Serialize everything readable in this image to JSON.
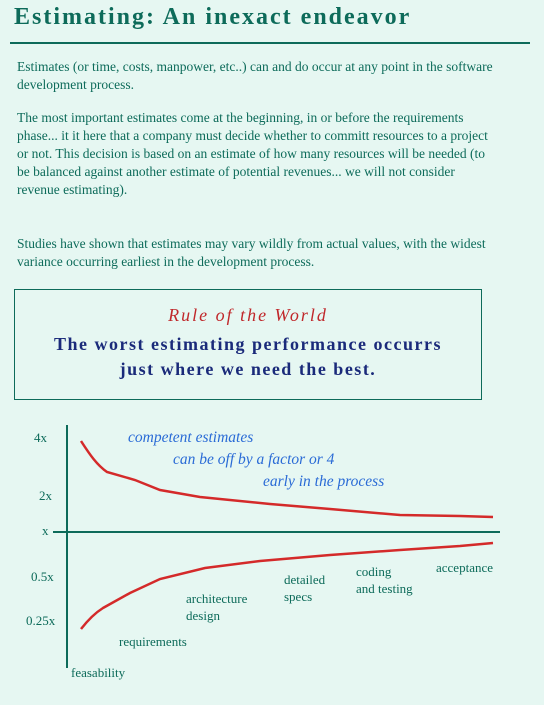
{
  "title": "Estimating: An inexact endeavor",
  "paragraphs": {
    "p1": "Estimates (or time, costs, manpower, etc..) can and do occur at any point in the software development process.",
    "p2": "The most important estimates come at the beginning, in or before the requirements phase... it it here that a company must decide whether to committ resources to a project or not.  This decision is based on an estimate of how many resources will be needed (to be balanced against another estimate of potential revenues... we will not consider revenue estimating).",
    "p3": "Studies have shown that estimates may vary wildly from actual values, with the widest variance occurring earliest in the development process."
  },
  "rule_box": {
    "heading": "Rule of the World",
    "line1": "The worst estimating performance occurrs",
    "line2": "just where we need the best."
  },
  "diagram": {
    "y_labels": [
      "4x",
      "2x",
      "x",
      "0.5x",
      "0.25x"
    ],
    "annotation": [
      "competent estimates",
      "can be off by a factor or 4",
      "early in the process"
    ],
    "phases": {
      "feasability": "feasability",
      "requirements": "requirements",
      "architecture": [
        "architecture",
        "design"
      ],
      "detailed": [
        "detailed",
        "specs"
      ],
      "coding": [
        "coding",
        "and testing"
      ],
      "acceptance": "acceptance"
    },
    "colors": {
      "curve": "#d42a2a",
      "axis": "#0d6b5a",
      "annotation": "#2a6bd6"
    }
  }
}
